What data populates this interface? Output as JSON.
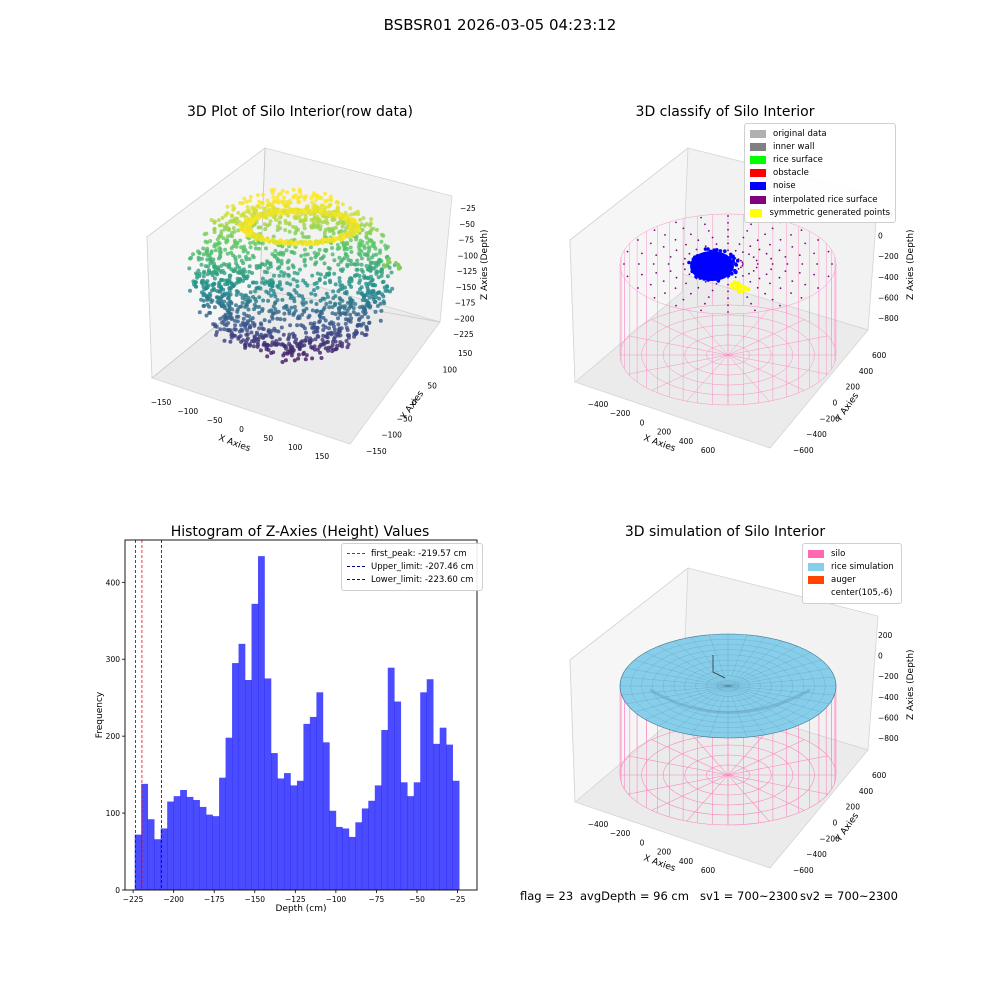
{
  "suptitle": "BSBSR01 2026-03-05 04:23:12",
  "panels": {
    "raw": {
      "title": "3D Plot of Silo Interior(row data)",
      "xlabel": "X Axies",
      "ylabel": "Y Axies",
      "zlabel": "Z Axies (Depth)",
      "xticks": [
        "−150",
        "−100",
        "−50",
        "0",
        "50",
        "100",
        "150"
      ],
      "yticks": [
        "−150",
        "−100",
        "−50",
        "0",
        "50",
        "100",
        "150"
      ],
      "zticks": [
        "−25",
        "−50",
        "−75",
        "−100",
        "−125",
        "−150",
        "−175",
        "−200",
        "−225"
      ]
    },
    "classify": {
      "title": "3D classify of Silo Interior",
      "xlabel": "X Axies",
      "ylabel": "Y Axies",
      "zlabel": "Z Axies (Depth)",
      "xticks": [
        "−400",
        "−200",
        "0",
        "200",
        "400",
        "600"
      ],
      "yticks": [
        "−600",
        "−400",
        "−200",
        "0",
        "200",
        "400",
        "600"
      ],
      "zticks": [
        "200",
        "0",
        "−200",
        "−400",
        "−600",
        "−800"
      ],
      "legend": [
        {
          "label": "original data",
          "color": "#b0b0b0"
        },
        {
          "label": "inner wall",
          "color": "#808080"
        },
        {
          "label": "rice surface",
          "color": "#00ff00"
        },
        {
          "label": "obstacle",
          "color": "#ff0000"
        },
        {
          "label": "noise",
          "color": "#0000ff"
        },
        {
          "label": "interpolated rice surface",
          "color": "#800080"
        },
        {
          "label": "symmetric generated points",
          "color": "#ffff00"
        }
      ]
    },
    "simulation": {
      "title": "3D simulation of Silo Interior",
      "xlabel": "X Axies",
      "ylabel": "Y Axies",
      "zlabel": "Z Axies (Depth)",
      "xticks": [
        "−400",
        "−200",
        "0",
        "200",
        "400",
        "600"
      ],
      "yticks": [
        "−600",
        "−400",
        "−200",
        "0",
        "200",
        "400",
        "600"
      ],
      "zticks": [
        "200",
        "0",
        "−200",
        "−400",
        "−600",
        "−800"
      ],
      "legend": [
        {
          "label": "silo",
          "color": "#ff69b4"
        },
        {
          "label": "rice simulation",
          "color": "#87ceeb"
        },
        {
          "label": "auger",
          "color": "#ff4500"
        },
        {
          "label": "center(105,-6)",
          "color": ""
        }
      ]
    }
  },
  "bottom": {
    "flag": "flag = 23",
    "avg": "avgDepth = 96 cm",
    "sv1": "sv1 = 700~2300",
    "sv2": "sv2 = 700~2300"
  },
  "chart_data": {
    "type": "bar",
    "title": "Histogram of Z-Axies (Height) Values",
    "xlabel": "Depth (cm)",
    "ylabel": "Frequency",
    "xlim": [
      -230,
      -13
    ],
    "ylim": [
      0,
      455
    ],
    "xticks": [
      -225,
      -200,
      -175,
      -150,
      -125,
      -100,
      -75,
      -50,
      -25
    ],
    "yticks": [
      0,
      100,
      200,
      300,
      400
    ],
    "bin_start": -224,
    "bin_width": 4,
    "values": [
      72,
      138,
      92,
      66,
      80,
      115,
      122,
      130,
      121,
      117,
      108,
      98,
      96,
      146,
      198,
      295,
      320,
      273,
      372,
      434,
      275,
      178,
      145,
      152,
      136,
      142,
      216,
      225,
      257,
      192,
      103,
      82,
      80,
      69,
      88,
      106,
      116,
      136,
      208,
      289,
      245,
      140,
      122,
      140,
      257,
      274,
      190,
      211,
      189,
      142
    ],
    "bar_color": "#0000ff",
    "vlines": [
      {
        "label": "first_peak: -219.57 cm",
        "x": -219.57,
        "color": "#ff0000"
      },
      {
        "label": "Upper_limit: -207.46 cm",
        "x": -207.46,
        "color": "#00008b"
      },
      {
        "label": "Lower_limit: -223.60 cm",
        "x": -223.6,
        "color": "#0000ff"
      }
    ]
  }
}
